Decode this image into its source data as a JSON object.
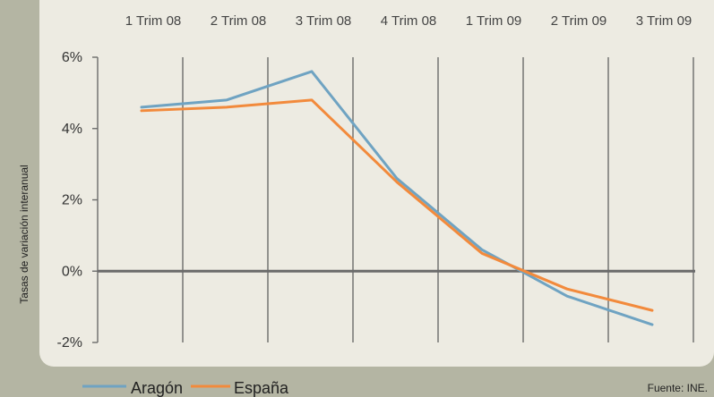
{
  "chart_data": {
    "type": "line",
    "x": [
      "1 Trim 08",
      "2 Trim 08",
      "3 Trim 08",
      "4 Trim 08",
      "1 Trim 09",
      "2 Trim 09",
      "3 Trim 09"
    ],
    "series": [
      {
        "name": "Aragón",
        "color": "#6fa3c2",
        "values": [
          4.6,
          4.8,
          5.6,
          2.6,
          0.6,
          -0.7,
          -1.5
        ]
      },
      {
        "name": "España",
        "color": "#f28a3c",
        "values": [
          4.5,
          4.6,
          4.8,
          2.5,
          0.5,
          -0.5,
          -1.1
        ]
      }
    ],
    "ylabel": "Tasas de variación interanual",
    "ylim": [
      -2,
      6
    ],
    "yticks": [
      6,
      4,
      2,
      0,
      -2
    ],
    "ytick_labels": [
      "6%",
      "4%",
      "2%",
      "0%",
      "-2%"
    ],
    "grid": "vertical",
    "legend": "bottom-left",
    "source": "Fuente: INE."
  }
}
